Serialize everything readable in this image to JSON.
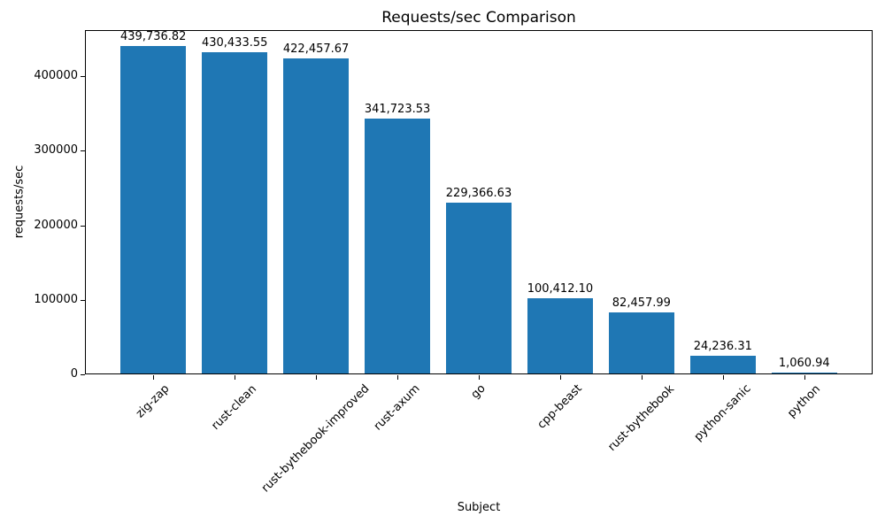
{
  "figure": {
    "background": "#ffffff",
    "spine_color": "#000000",
    "text_color": "#000000"
  },
  "chart_data": {
    "type": "bar",
    "title": "Requests/sec Comparison",
    "xlabel": "Subject",
    "ylabel": "requests/sec",
    "categories": [
      "zig-zap",
      "rust-clean",
      "rust-bythebook-improved",
      "rust-axum",
      "go",
      "cpp-beast",
      "rust-bythebook",
      "python-sanic",
      "python"
    ],
    "values": [
      439736.82,
      430433.55,
      422457.67,
      341723.53,
      229366.63,
      100412.1,
      82457.99,
      24236.31,
      1060.94
    ],
    "bar_labels": [
      "439,736.82",
      "430,433.55",
      "422,457.67",
      "341,723.53",
      "229,366.63",
      "100,412.10",
      "82,457.99",
      "24,236.31",
      "1,060.94"
    ],
    "bar_color": "#1f77b4",
    "ylim": [
      0,
      461723.66
    ],
    "yticks": [
      0,
      100000,
      200000,
      300000,
      400000
    ],
    "ytick_labels": [
      "0",
      "100000",
      "200000",
      "300000",
      "400000"
    ],
    "xtick_rotation_deg": 45,
    "grid": false
  }
}
